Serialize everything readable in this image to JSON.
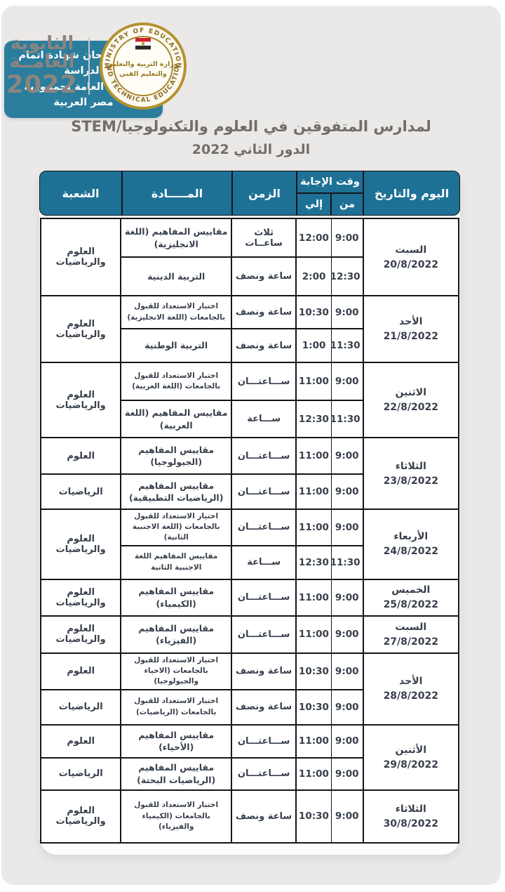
{
  "header": {
    "badge_line1": "جدول امتحان شهادة اتمام الدراسة",
    "badge_line2": "الثانوية العامة بجمهورية مصر العربية",
    "secondary_logo": {
      "line1": "الثانوية",
      "line2": "العامــة",
      "year": "2022"
    },
    "ministry_logo": {
      "arc_top": "MINISTRY OF EDUCATION",
      "arc_bottom": "AND TECHNICAL EDUCATION",
      "ar_line1": "وزارة التربية والتعليم",
      "ar_line2": "والتعليم الفني"
    },
    "title_line1": "لمدارس المتفوقين في العلوم والتكنولوجيا/STEM",
    "title_line2": "الدور الثاني 2022"
  },
  "colors": {
    "badge_teal": "#2b7d9d",
    "header_teal": "#1e7195",
    "border_dark": "#15161c",
    "page_gray": "#eae9e7",
    "logo_gray": "#8a857e",
    "seal_gold": "#b3922f"
  },
  "table": {
    "columns": {
      "day": "اليوم والتاريخ",
      "answer_time": "وقت الإجابة",
      "from": "من",
      "to": "إلي",
      "duration": "الزمن",
      "subject": "المـــــادة",
      "branch": "الشعبة"
    },
    "groups": [
      {
        "day": "السبت",
        "date": "20/8/2022",
        "rows": [
          {
            "from": "9:00",
            "to": "12:00",
            "duration": "ثلاث ساعــات",
            "subject": "مقاييس المفاهيم (اللغة الانجليزية)",
            "branch": "العلوم والرياضيات",
            "branch_span": 2
          },
          {
            "from": "12:30",
            "to": "2:00",
            "duration": "ساعة ونصف",
            "subject": "التربية الدينية"
          }
        ]
      },
      {
        "day": "الأحد",
        "date": "21/8/2022",
        "rows": [
          {
            "from": "9:00",
            "to": "10:30",
            "duration": "ساعة ونصف",
            "subject": "اختبار الاستعداد للقبول بالجامعات (اللغة الانجليزية)",
            "branch": "العلوم والرياضيات",
            "branch_span": 2
          },
          {
            "from": "11:30",
            "to": "1:00",
            "duration": "ساعة ونصف",
            "subject": "التربية الوطنية"
          }
        ]
      },
      {
        "day": "الاثنين",
        "date": "22/8/2022",
        "rows": [
          {
            "from": "9:00",
            "to": "11:00",
            "duration": "ســـاعتـــان",
            "subject": "اختبار الاستعداد للقبول بالجامعات (اللغة العربية)",
            "branch": "العلوم والرياضيات",
            "branch_span": 2
          },
          {
            "from": "11:30",
            "to": "12:30",
            "duration": "ســـاعة",
            "subject": "مقاييس المفاهيم (اللغة العربية)"
          }
        ]
      },
      {
        "day": "الثلاثاء",
        "date": "23/8/2022",
        "rows": [
          {
            "from": "9:00",
            "to": "11:00",
            "duration": "ســـاعتـــان",
            "subject": "مقاييس المفاهيم (الجيولوجيا)",
            "branch": "العلوم"
          },
          {
            "from": "9:00",
            "to": "11:00",
            "duration": "ســـاعتـــان",
            "subject": "مقاييس المفاهيم (الرياضيات التطبيقية)",
            "branch": "الرياضيات"
          }
        ]
      },
      {
        "day": "الأربعاء",
        "date": "24/8/2022",
        "rows": [
          {
            "from": "9:00",
            "to": "11:00",
            "duration": "ســـاعتـــان",
            "subject": "اختبار الاستعداد للقبول بالجامعات (اللغة الاجنبية الثانية)",
            "branch": "العلوم والرياضيات",
            "branch_span": 2
          },
          {
            "from": "11:30",
            "to": "12:30",
            "duration": "ســـاعة",
            "subject": "مقاييس المفاهيم اللغة الاجنبية الثانية"
          }
        ]
      },
      {
        "day": "الخميس",
        "date": "25/8/2022",
        "rows": [
          {
            "from": "9:00",
            "to": "11:00",
            "duration": "ســـاعتـــان",
            "subject": "مقاييس المفاهيم (الكيمياء)",
            "branch": "العلوم والرياضيات"
          }
        ]
      },
      {
        "day": "السبت",
        "date": "27/8/2022",
        "rows": [
          {
            "from": "9:00",
            "to": "11:00",
            "duration": "ســـاعتـــان",
            "subject": "مقاييس المفاهيم (الفيزياء)",
            "branch": "العلوم والرياضيات"
          }
        ]
      },
      {
        "day": "الأحد",
        "date": "28/8/2022",
        "rows": [
          {
            "from": "9:00",
            "to": "10:30",
            "duration": "ساعة ونصف",
            "subject": "اختبار الاستعداد للقبول بالجامعات (الاحياء والجيولوجيا)",
            "branch": "العلوم"
          },
          {
            "from": "9:00",
            "to": "10:30",
            "duration": "ساعة ونصف",
            "subject": "اختبار الاستعداد للقبول بالجامعات (الرياضيات)",
            "branch": "الرياضيات"
          }
        ]
      },
      {
        "day": "الأثنين",
        "date": "29/8/2022",
        "rows": [
          {
            "from": "9:00",
            "to": "11:00",
            "duration": "ســـاعتـــان",
            "subject": "مقاييس المفاهيم (الأحياء)",
            "branch": "العلوم"
          },
          {
            "from": "9:00",
            "to": "11:00",
            "duration": "ســـاعتـــان",
            "subject": "مقاييس المفاهيم (الرياضيات البحتة)",
            "branch": "الرياضيات"
          }
        ]
      },
      {
        "day": "الثلاثاء",
        "date": "30/8/2022",
        "rows": [
          {
            "from": "9:00",
            "to": "10:30",
            "duration": "ساعة ونصف",
            "subject": "اختبار الاستعداد للقبول بالجامعات (الكيمياء والفيزياء)",
            "branch": "العلوم والرياضيات"
          }
        ]
      }
    ]
  }
}
